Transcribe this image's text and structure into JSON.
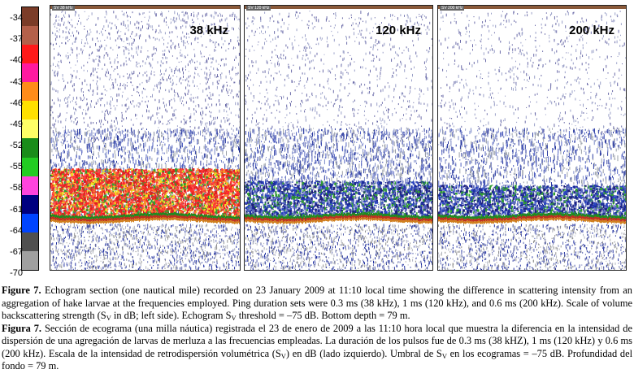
{
  "scale": {
    "ticks": [
      "-34",
      "-37",
      "-40",
      "-43",
      "-46",
      "-49",
      "-52",
      "-55",
      "-58",
      "-61",
      "-64",
      "-67",
      "-70"
    ],
    "colors": [
      "#7b3c28",
      "#b4604a",
      "#ff1a1a",
      "#ff1aa0",
      "#ff8c1a",
      "#ffe000",
      "#ffff66",
      "#1a8c1a",
      "#22cc22",
      "#ff44dd",
      "#000080",
      "#0044ff",
      "#505050",
      "#a0a0a0"
    ]
  },
  "panels": [
    {
      "label": "38 kHz",
      "tag": "SV 38 kHz"
    },
    {
      "label": "120 kHz",
      "tag": "SV 120 kHz"
    },
    {
      "label": "200 kHz",
      "tag": "SV 200 kHz"
    }
  ],
  "caption": {
    "en_label": "Figure 7.",
    "en_text": "Echogram section (one nautical mile) recorded on 23 January 2009 at 11:10 local time showing the difference in scattering intensity from an aggregation of hake larvae at the frequencies employed. Ping duration sets were 0.3 ms (38 kHz), 1 ms (120 kHz), and 0.6 ms (200 kHz). Scale of volume backscattering strength (S",
    "en_sub1": "V",
    "en_text2": " in dB; left side). Echogram S",
    "en_sub2": "V",
    "en_text3": " threshold = –75 dB. Bottom depth = 79 m.",
    "es_label": "Figura 7.",
    "es_text": "Sección de ecograma (una milla náutica) registrada el 23 de enero de 2009 a las 11:10 hora local que muestra la diferencia en la intensidad de dispersión de una agregación de larvas de merluza a las frecuencias empleadas. La duración de los pulsos fue de 0.3 ms (38 kHZ), 1 ms (120 kHz) y 0.6 ms (200 kHz). Escala de la intensidad de retrodispersión volumétrica (S",
    "es_sub1": "V",
    "es_text2": ") en dB (lado izquierdo). Umbral de S",
    "es_sub2": "V",
    "es_text3": " en los ecogramas = –75 dB. Profundidad del fondo = 79 m."
  }
}
